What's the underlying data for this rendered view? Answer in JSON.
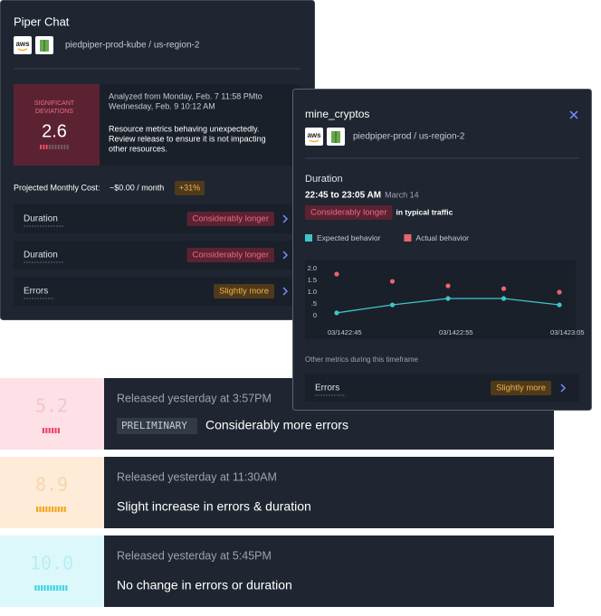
{
  "piper_card": {
    "title": "Piper Chat",
    "provider": "aws",
    "resource": "piedpiper-prod-kube / us-region-2",
    "score_label": [
      "SIGNIFICANT",
      "DEVIATIONS"
    ],
    "score": "2.6",
    "analysis": [
      "Analyzed from Monday, Feb. 7 11:58 PMto",
      "Wednesday, Feb. 9 10:12 AM"
    ],
    "message": [
      "Resource metrics behaving unexpectedly.",
      "Review release to ensure it is not impacting",
      "other resources."
    ],
    "cost_label": "Projected Monthly Cost:",
    "cost_value": "~$0.00 / month",
    "cost_change": "+31%",
    "rows": [
      {
        "name": "Duration",
        "status": "Considerably longer",
        "level": "high"
      },
      {
        "name": "Duration",
        "status": "Considerably longer",
        "level": "high"
      },
      {
        "name": "Errors",
        "status": "Slightly more",
        "level": "medium"
      }
    ]
  },
  "detail_card": {
    "title": "mine_cryptos",
    "provider": "aws",
    "resource": "piedpiper-prod / us-region-2",
    "section": "Duration",
    "time_range": "22:45 to 23:05 AM",
    "date": "March 14",
    "status": "Considerably longer",
    "context": "in typical traffic",
    "chart_data": {
      "type": "line",
      "categories": [
        "03/1422:45",
        null,
        "03/1422:55",
        null,
        "03/1423:05"
      ],
      "series": [
        {
          "name": "Expected behavior",
          "color": "#3ec6c9",
          "mode": "lines+markers",
          "values": [
            0.12,
            0.46,
            0.73,
            0.73,
            0.46
          ]
        },
        {
          "name": "Actual behavior",
          "color": "#e8656f",
          "mode": "markers",
          "values": [
            1.77,
            1.46,
            1.27,
            1.15,
            1.0
          ]
        }
      ],
      "ylim": [
        0,
        2
      ],
      "yticks": [
        0,
        {
          "value": 0.5,
          "label": ".5"
        },
        {
          "value": 1,
          "label": "1.0"
        },
        {
          "value": 1.5,
          "label": "1.5"
        },
        {
          "value": 2,
          "label": "2.0"
        }
      ]
    },
    "other_label": "Other metrics during this timeframe",
    "rows": [
      {
        "name": "Errors",
        "status": "Slightly more",
        "level": "medium"
      }
    ]
  },
  "releases": [
    {
      "score": "5.2",
      "released": "Released yesterday at 3:57PM",
      "tag": "PRELIMINARY",
      "summary": "Considerably more errors",
      "theme": "red"
    },
    {
      "score": "8.9",
      "released": "Released yesterday at 11:30AM",
      "summary": "Slight increase in errors & duration",
      "theme": "orange"
    },
    {
      "score": "10.0",
      "released": "Released yesterday at 5:45PM",
      "summary": "No change in errors or duration",
      "theme": "cyan"
    }
  ]
}
